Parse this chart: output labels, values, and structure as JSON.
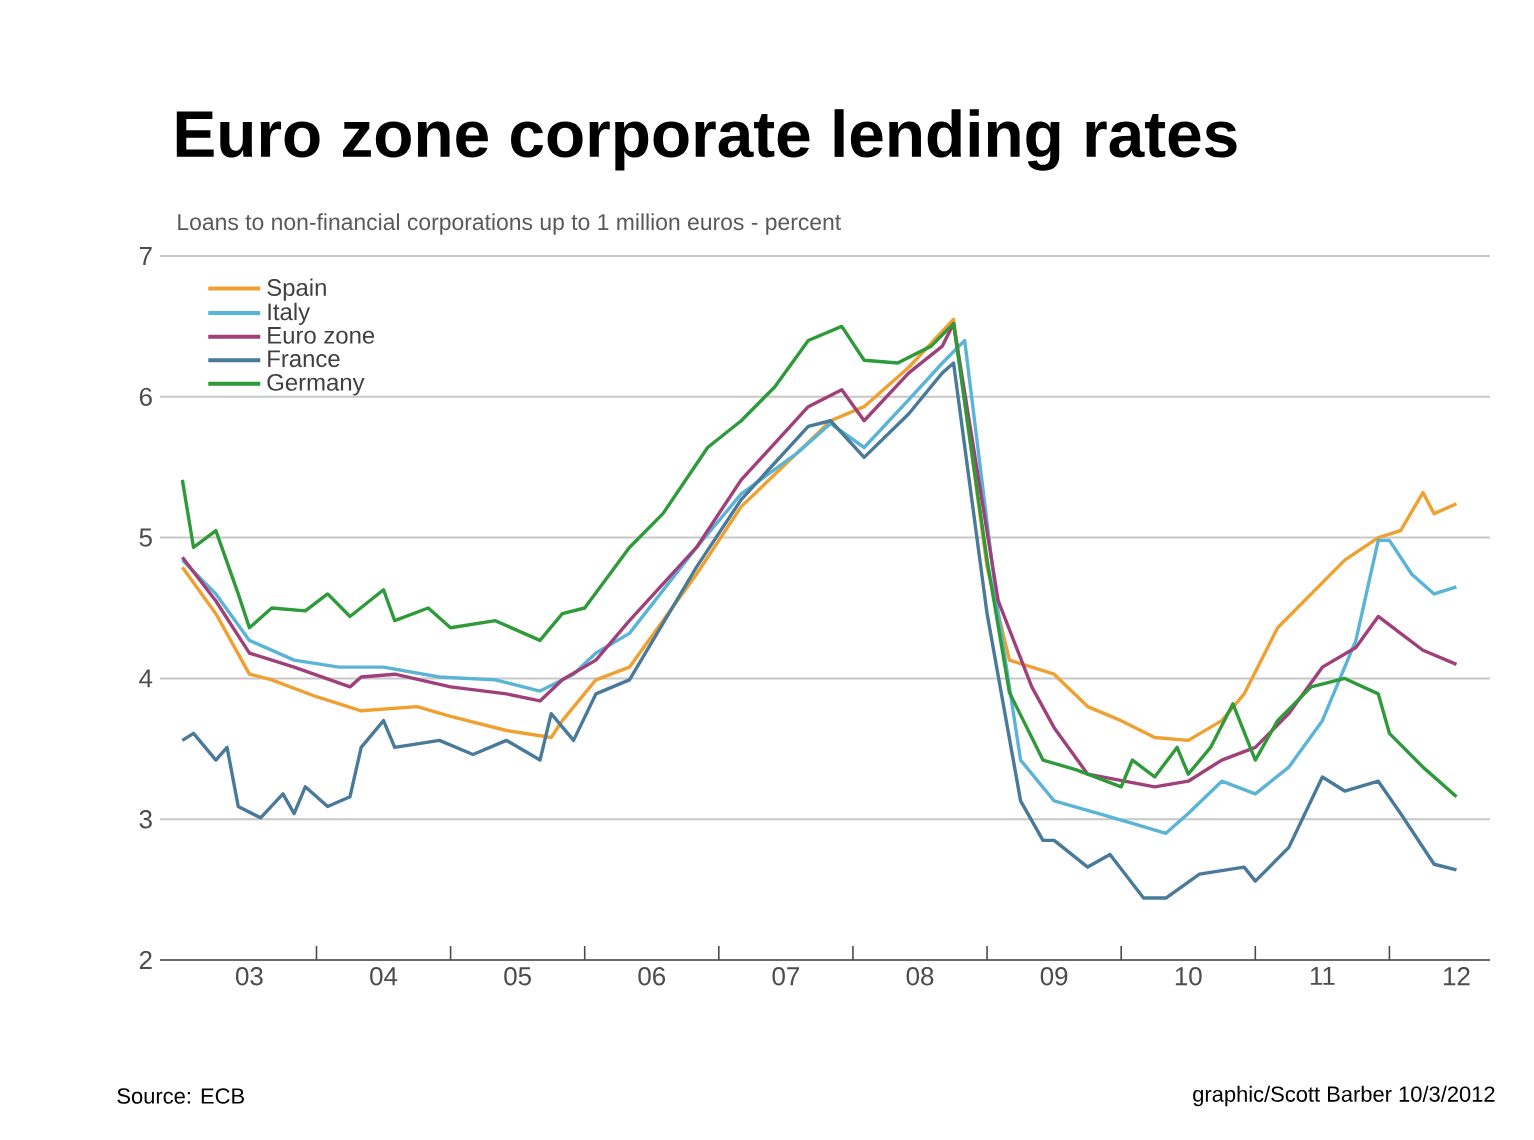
{
  "chart_data": {
    "type": "line",
    "title": "Euro zone corporate lending rates",
    "subtitle": "Loans to non-financial corporations up to 1 million euros - percent",
    "annotations": [
      "Source: ECB",
      "graphic/Scott Barber 10/3/2012"
    ],
    "xlim": [
      "2002-11",
      "2012-10"
    ],
    "ylim": [
      2,
      7
    ],
    "yticks": [
      2,
      3,
      4,
      5,
      6,
      7
    ],
    "xticks": [
      {
        "value": "2003-07",
        "label": "03"
      },
      {
        "value": "2004-07",
        "label": "04"
      },
      {
        "value": "2005-07",
        "label": "05"
      },
      {
        "value": "2006-07",
        "label": "06"
      },
      {
        "value": "2007-07",
        "label": "07"
      },
      {
        "value": "2008-07",
        "label": "08"
      },
      {
        "value": "2009-07",
        "label": "09"
      },
      {
        "value": "2010-07",
        "label": "10"
      },
      {
        "value": "2011-07",
        "label": "11"
      },
      {
        "value": "2012-07",
        "label": "12"
      },
      {
        "value": "2004-01",
        "label": null
      },
      {
        "value": "2005-01",
        "label": null
      },
      {
        "value": "2006-01",
        "label": null
      },
      {
        "value": "2007-01",
        "label": null
      },
      {
        "value": "2008-01",
        "label": null
      },
      {
        "value": "2009-01",
        "label": null
      },
      {
        "value": "2010-01",
        "label": null
      },
      {
        "value": "2011-01",
        "label": null
      },
      {
        "value": "2012-01",
        "label": null
      }
    ],
    "grid": "y",
    "legend": "top left",
    "series": [
      {
        "name": "Spain",
        "color": "#f0a030",
        "x": [
          "2003-01",
          "2003-04",
          "2003-07",
          "2003-09",
          "2004-01",
          "2004-05",
          "2004-10",
          "2005-01",
          "2005-06",
          "2005-10",
          "2005-11",
          "2006-02",
          "2006-05",
          "2006-11",
          "2007-03",
          "2007-08",
          "2007-11",
          "2008-02",
          "2008-06",
          "2008-10",
          "2009-01",
          "2009-03",
          "2009-07",
          "2009-10",
          "2010-01",
          "2010-04",
          "2010-07",
          "2010-10",
          "2010-12",
          "2011-03",
          "2011-06",
          "2011-09",
          "2011-12",
          "2012-02",
          "2012-04",
          "2012-05",
          "2012-07"
        ],
        "values": [
          4.79,
          4.46,
          4.03,
          3.99,
          3.87,
          3.77,
          3.8,
          3.73,
          3.63,
          3.58,
          3.7,
          3.99,
          4.08,
          4.74,
          5.22,
          5.6,
          5.83,
          5.93,
          6.21,
          6.55,
          4.79,
          4.13,
          4.03,
          3.8,
          3.7,
          3.58,
          3.56,
          3.7,
          3.89,
          4.36,
          4.6,
          4.84,
          5.0,
          5.05,
          5.32,
          5.17,
          5.24
        ]
      },
      {
        "name": "Italy",
        "color": "#5ab4d6",
        "x": [
          "2003-01",
          "2003-04",
          "2003-07",
          "2003-11",
          "2004-03",
          "2004-07",
          "2004-12",
          "2005-05",
          "2005-09",
          "2005-12",
          "2006-02",
          "2006-05",
          "2006-11",
          "2007-03",
          "2007-08",
          "2007-11",
          "2008-02",
          "2008-06",
          "2008-09",
          "2008-11",
          "2009-02",
          "2009-04",
          "2009-07",
          "2009-11",
          "2010-02",
          "2010-05",
          "2010-07",
          "2010-10",
          "2011-01",
          "2011-04",
          "2011-07",
          "2011-10",
          "2011-12",
          "2012-01",
          "2012-03",
          "2012-05",
          "2012-07"
        ],
        "values": [
          4.84,
          4.6,
          4.27,
          4.13,
          4.08,
          4.08,
          4.01,
          3.99,
          3.91,
          4.03,
          4.18,
          4.32,
          4.93,
          5.31,
          5.6,
          5.81,
          5.64,
          5.98,
          6.24,
          6.4,
          4.46,
          3.42,
          3.13,
          3.04,
          2.97,
          2.9,
          3.04,
          3.27,
          3.18,
          3.37,
          3.7,
          4.27,
          4.98,
          4.98,
          4.74,
          4.6,
          4.65
        ]
      },
      {
        "name": "Euro zone",
        "color": "#a0407a",
        "x": [
          "2003-01",
          "2003-04",
          "2003-07",
          "2003-11",
          "2004-04",
          "2004-05",
          "2004-08",
          "2005-01",
          "2005-06",
          "2005-09",
          "2005-11",
          "2006-02",
          "2006-05",
          "2006-11",
          "2007-03",
          "2007-09",
          "2007-12",
          "2008-02",
          "2008-06",
          "2008-09",
          "2008-10",
          "2009-02",
          "2009-05",
          "2009-07",
          "2009-10",
          "2010-04",
          "2010-07",
          "2010-10",
          "2011-01",
          "2011-04",
          "2011-07",
          "2011-10",
          "2011-12",
          "2012-02",
          "2012-04",
          "2012-07"
        ],
        "values": [
          4.86,
          4.55,
          4.18,
          4.08,
          3.94,
          4.01,
          4.03,
          3.94,
          3.89,
          3.84,
          3.99,
          4.13,
          4.41,
          4.93,
          5.41,
          5.93,
          6.05,
          5.83,
          6.17,
          6.36,
          6.52,
          4.55,
          3.94,
          3.65,
          3.32,
          3.23,
          3.27,
          3.42,
          3.51,
          3.75,
          4.08,
          4.22,
          4.44,
          4.32,
          4.2,
          4.1
        ]
      },
      {
        "name": "France",
        "color": "#4a7a9a",
        "x": [
          "2003-01",
          "2003-02",
          "2003-04",
          "2003-05",
          "2003-06",
          "2003-08",
          "2003-10",
          "2003-11",
          "2003-12",
          "2004-02",
          "2004-04",
          "2004-05",
          "2004-07",
          "2004-08",
          "2004-12",
          "2005-03",
          "2005-06",
          "2005-09",
          "2005-10",
          "2005-12",
          "2006-02",
          "2006-05",
          "2006-11",
          "2007-03",
          "2007-09",
          "2007-11",
          "2008-02",
          "2008-06",
          "2008-09",
          "2008-10",
          "2009-01",
          "2009-04",
          "2009-06",
          "2009-07",
          "2009-10",
          "2009-12",
          "2010-03",
          "2010-05",
          "2010-08",
          "2010-12",
          "2011-01",
          "2011-04",
          "2011-07",
          "2011-09",
          "2011-12",
          "2012-02",
          "2012-05",
          "2012-07"
        ],
        "values": [
          3.56,
          3.61,
          3.42,
          3.51,
          3.09,
          3.01,
          3.18,
          3.04,
          3.23,
          3.09,
          3.16,
          3.51,
          3.7,
          3.51,
          3.56,
          3.46,
          3.56,
          3.42,
          3.75,
          3.56,
          3.89,
          3.99,
          4.79,
          5.27,
          5.79,
          5.83,
          5.57,
          5.88,
          6.17,
          6.24,
          4.46,
          3.13,
          2.85,
          2.85,
          2.66,
          2.75,
          2.44,
          2.44,
          2.61,
          2.66,
          2.56,
          2.8,
          3.3,
          3.2,
          3.27,
          3.04,
          2.68,
          2.64
        ]
      },
      {
        "name": "Germany",
        "color": "#2e9a3a",
        "x": [
          "2003-01",
          "2003-02",
          "2003-04",
          "2003-06",
          "2003-07",
          "2003-09",
          "2003-12",
          "2004-02",
          "2004-04",
          "2004-07",
          "2004-08",
          "2004-11",
          "2005-01",
          "2005-05",
          "2005-09",
          "2005-11",
          "2006-01",
          "2006-05",
          "2006-08",
          "2006-12",
          "2007-03",
          "2007-06",
          "2007-09",
          "2007-12",
          "2008-02",
          "2008-05",
          "2008-08",
          "2008-10",
          "2009-01",
          "2009-03",
          "2009-06",
          "2009-09",
          "2010-01",
          "2010-02",
          "2010-04",
          "2010-06",
          "2010-07",
          "2010-09",
          "2010-11",
          "2011-01",
          "2011-03",
          "2011-06",
          "2011-09",
          "2011-12",
          "2012-01",
          "2012-04",
          "2012-07"
        ],
        "values": [
          5.41,
          4.93,
          5.05,
          4.6,
          4.36,
          4.5,
          4.48,
          4.6,
          4.44,
          4.63,
          4.41,
          4.5,
          4.36,
          4.41,
          4.27,
          4.46,
          4.5,
          4.93,
          5.17,
          5.64,
          5.83,
          6.07,
          6.4,
          6.5,
          6.26,
          6.24,
          6.36,
          6.52,
          4.84,
          3.9,
          3.42,
          3.35,
          3.23,
          3.42,
          3.3,
          3.51,
          3.32,
          3.51,
          3.82,
          3.42,
          3.7,
          3.94,
          4.0,
          3.89,
          3.61,
          3.37,
          3.16
        ]
      }
    ]
  }
}
